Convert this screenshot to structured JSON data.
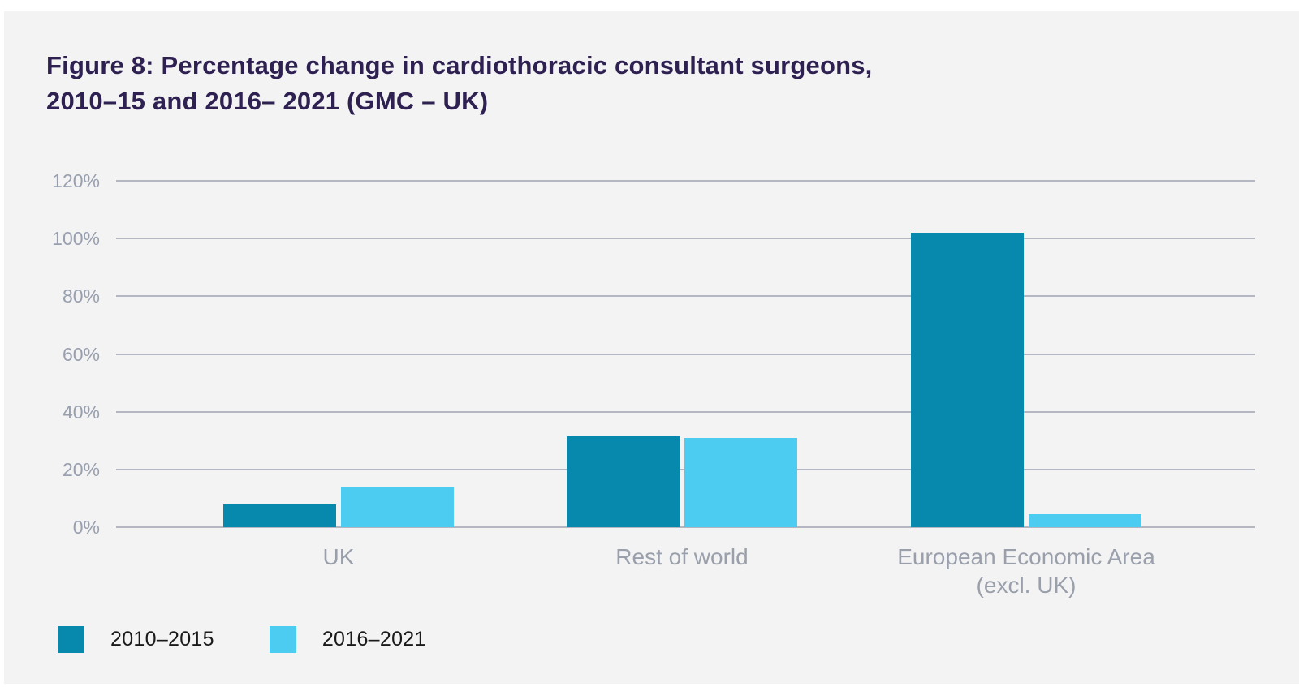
{
  "figure": {
    "title_line1": "Figure 8: Percentage change in cardiothoracic consultant surgeons,",
    "title_line2": "2010–15 and 2016– 2021 (GMC – UK)"
  },
  "chart_data": {
    "type": "bar",
    "title": "Figure 8: Percentage change in cardiothoracic consultant surgeons, 2010–15 and 2016– 2021 (GMC – UK)",
    "categories": [
      "UK",
      "Rest of world",
      "European Economic Area\n(excl. UK)"
    ],
    "series": [
      {
        "name": "2010–2015",
        "color": "#0789ad",
        "values": [
          8,
          31.5,
          102
        ]
      },
      {
        "name": "2016–2021",
        "color": "#4dccf2",
        "values": [
          14,
          31,
          4.5
        ]
      }
    ],
    "xlabel": "",
    "ylabel": "",
    "y_ticks": [
      "0%",
      "20%",
      "40%",
      "60%",
      "80%",
      "100%",
      "120%"
    ],
    "ylim": [
      0,
      120
    ],
    "grid": true,
    "legend_position": "bottom-left"
  },
  "colors": {
    "page_bg": "#ffffff",
    "panel_bg": "#f3f3f4",
    "title": "#2e2152",
    "gridline": "#b4b7c1",
    "y_tick_label": "#989fae",
    "category_label": "#9aa0ab",
    "legend_text": "#1a1a1a",
    "series_2010_2015": "#0789ad",
    "series_2016_2021": "#4dccf2"
  }
}
